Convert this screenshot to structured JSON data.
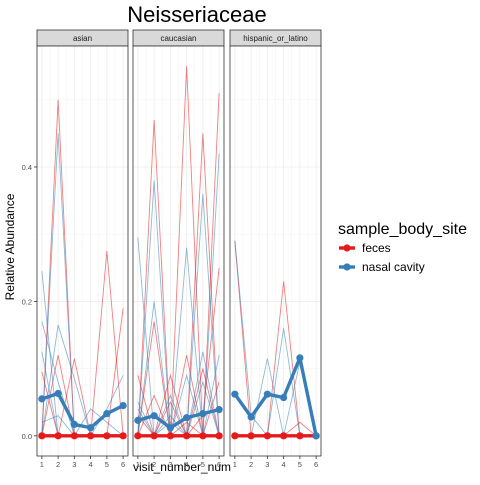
{
  "chart_data": {
    "type": "line",
    "title": "Neisseriaceae",
    "xlabel": "visit_number_num",
    "ylabel": "Relative Abundance",
    "facets": [
      "asian",
      "caucasian",
      "hispanic_or_latino"
    ],
    "x": [
      1,
      2,
      3,
      4,
      5,
      6
    ],
    "ylim": [
      -0.03,
      0.58
    ],
    "yticks": [
      0.0,
      0.2,
      0.4
    ],
    "ytick_labels": [
      "0.0",
      "0.2",
      "0.4"
    ],
    "grid": true,
    "legend": {
      "title": "sample_body_site",
      "position": "right",
      "entries": [
        {
          "label": "feces",
          "color": "#E41A1C"
        },
        {
          "label": "nasal cavity",
          "color": "#377EB8"
        }
      ]
    },
    "series": [
      {
        "name": "feces",
        "color": "#E41A1C",
        "panel": "asian",
        "x": [
          1,
          2,
          3,
          4,
          5,
          6
        ],
        "values": [
          0,
          0,
          0,
          0,
          0,
          0
        ]
      },
      {
        "name": "nasal cavity",
        "color": "#377EB8",
        "panel": "asian",
        "x": [
          1,
          2,
          3,
          4,
          5,
          6
        ],
        "values": [
          0.055,
          0.063,
          0.017,
          0.012,
          0.033,
          0.045
        ]
      },
      {
        "name": "feces",
        "color": "#E41A1C",
        "panel": "caucasian",
        "x": [
          1,
          2,
          3,
          4,
          5,
          6
        ],
        "values": [
          0,
          0,
          0,
          0,
          0,
          0
        ]
      },
      {
        "name": "nasal cavity",
        "color": "#377EB8",
        "panel": "caucasian",
        "x": [
          1,
          2,
          3,
          4,
          5,
          6
        ],
        "values": [
          0.023,
          0.03,
          0.012,
          0.027,
          0.033,
          0.039
        ]
      },
      {
        "name": "feces",
        "color": "#E41A1C",
        "panel": "hispanic_or_latino",
        "x": [
          1,
          2,
          3,
          4,
          5,
          6
        ],
        "values": [
          0,
          0,
          0,
          0,
          0,
          0
        ]
      },
      {
        "name": "nasal cavity",
        "color": "#377EB8",
        "panel": "hispanic_or_latino",
        "x": [
          1,
          2,
          3,
          4,
          5,
          6
        ],
        "values": [
          0.062,
          0.028,
          0.062,
          0.057,
          0.116,
          0.0
        ]
      }
    ],
    "individual_traces": [
      {
        "panel": "asian",
        "color": "#E41A1C",
        "values": [
          0.0,
          0.5,
          0.0,
          0.0,
          0.0,
          0.0
        ]
      },
      {
        "panel": "asian",
        "color": "#E41A1C",
        "values": [
          0.095,
          0.0,
          0.115,
          0.0,
          0.0,
          0.0
        ]
      },
      {
        "panel": "asian",
        "color": "#E41A1C",
        "values": [
          0.0,
          0.0,
          0.0,
          0.0,
          0.275,
          0.0
        ]
      },
      {
        "panel": "asian",
        "color": "#E41A1C",
        "values": [
          0.0,
          0.0,
          0.0,
          0.0,
          0.0,
          0.19
        ]
      },
      {
        "panel": "asian",
        "color": "#E41A1C",
        "values": [
          0.0,
          0.12,
          0.0,
          0.0,
          0.0,
          0.0
        ]
      },
      {
        "panel": "asian",
        "color": "#377EB8",
        "values": [
          0.245,
          0.0,
          0.0,
          0.0,
          0.0,
          0.0
        ]
      },
      {
        "panel": "asian",
        "color": "#377EB8",
        "values": [
          0.17,
          0.08,
          0.0,
          0.0,
          0.0,
          0.0
        ]
      },
      {
        "panel": "asian",
        "color": "#377EB8",
        "values": [
          0.125,
          0.0,
          0.0,
          0.0,
          0.0,
          0.0
        ]
      },
      {
        "panel": "asian",
        "color": "#377EB8",
        "values": [
          0.0,
          0.165,
          0.085,
          0.0,
          0.0,
          0.0
        ]
      },
      {
        "panel": "asian",
        "color": "#377EB8",
        "values": [
          0.0,
          0.45,
          0.0,
          0.0,
          0.0,
          0.0
        ]
      },
      {
        "panel": "asian",
        "color": "#377EB8",
        "values": [
          0.02,
          0.03,
          0.0,
          0.04,
          0.02,
          0.0
        ]
      },
      {
        "panel": "asian",
        "color": "#377EB8",
        "values": [
          0.0,
          0.0,
          0.0,
          0.0,
          0.04,
          0.09
        ]
      },
      {
        "panel": "caucasian",
        "color": "#E41A1C",
        "values": [
          0.0,
          0.47,
          0.0,
          0.0,
          0.0,
          0.0
        ]
      },
      {
        "panel": "caucasian",
        "color": "#E41A1C",
        "values": [
          0.0,
          0.0,
          0.0,
          0.55,
          0.0,
          0.0
        ]
      },
      {
        "panel": "caucasian",
        "color": "#E41A1C",
        "values": [
          0.0,
          0.0,
          0.0,
          0.0,
          0.45,
          0.0
        ]
      },
      {
        "panel": "caucasian",
        "color": "#E41A1C",
        "values": [
          0.0,
          0.0,
          0.0,
          0.0,
          0.0,
          0.51
        ]
      },
      {
        "panel": "caucasian",
        "color": "#E41A1C",
        "values": [
          0.0,
          0.17,
          0.0,
          0.0,
          0.0,
          0.0
        ]
      },
      {
        "panel": "caucasian",
        "color": "#E41A1C",
        "values": [
          0.03,
          0.0,
          0.09,
          0.0,
          0.0,
          0.0
        ]
      },
      {
        "panel": "caucasian",
        "color": "#E41A1C",
        "values": [
          0.0,
          0.0,
          0.0,
          0.12,
          0.0,
          0.0
        ]
      },
      {
        "panel": "caucasian",
        "color": "#E41A1C",
        "values": [
          0.0,
          0.0,
          0.0,
          0.0,
          0.03,
          0.25
        ]
      },
      {
        "panel": "caucasian",
        "color": "#E41A1C",
        "values": [
          0.0,
          0.0,
          0.05,
          0.0,
          0.0,
          0.0
        ]
      },
      {
        "panel": "caucasian",
        "color": "#E41A1C",
        "values": [
          0.09,
          0.0,
          0.0,
          0.02,
          0.0,
          0.0
        ]
      },
      {
        "panel": "caucasian",
        "color": "#E41A1C",
        "values": [
          0.0,
          0.0,
          0.0,
          0.0,
          0.0,
          0.08
        ]
      },
      {
        "panel": "caucasian",
        "color": "#E41A1C",
        "values": [
          0.0,
          0.06,
          0.0,
          0.0,
          0.1,
          0.0
        ]
      },
      {
        "panel": "caucasian",
        "color": "#377EB8",
        "values": [
          0.295,
          0.0,
          0.0,
          0.0,
          0.0,
          0.0
        ]
      },
      {
        "panel": "caucasian",
        "color": "#377EB8",
        "values": [
          0.0,
          0.38,
          0.0,
          0.0,
          0.0,
          0.0
        ]
      },
      {
        "panel": "caucasian",
        "color": "#377EB8",
        "values": [
          0.0,
          0.0,
          0.0,
          0.28,
          0.0,
          0.0
        ]
      },
      {
        "panel": "caucasian",
        "color": "#377EB8",
        "values": [
          0.0,
          0.0,
          0.0,
          0.0,
          0.36,
          0.0
        ]
      },
      {
        "panel": "caucasian",
        "color": "#377EB8",
        "values": [
          0.0,
          0.0,
          0.0,
          0.0,
          0.0,
          0.42
        ]
      },
      {
        "panel": "caucasian",
        "color": "#377EB8",
        "values": [
          0.0,
          0.2,
          0.0,
          0.0,
          0.0,
          0.0
        ]
      },
      {
        "panel": "caucasian",
        "color": "#377EB8",
        "values": [
          0.0,
          0.0,
          0.0,
          0.0,
          0.125,
          0.0
        ]
      },
      {
        "panel": "caucasian",
        "color": "#377EB8",
        "values": [
          0.05,
          0.0,
          0.06,
          0.0,
          0.0,
          0.0
        ]
      },
      {
        "panel": "caucasian",
        "color": "#377EB8",
        "values": [
          0.0,
          0.0,
          0.0,
          0.09,
          0.0,
          0.12
        ]
      },
      {
        "panel": "caucasian",
        "color": "#377EB8",
        "values": [
          0.0,
          0.0,
          0.03,
          0.0,
          0.0,
          0.0
        ]
      },
      {
        "panel": "caucasian",
        "color": "#377EB8",
        "values": [
          0.04,
          0.0,
          0.0,
          0.0,
          0.0,
          0.0
        ]
      },
      {
        "panel": "caucasian",
        "color": "#377EB8",
        "values": [
          0.0,
          0.0,
          0.02,
          0.0,
          0.08,
          0.0
        ]
      },
      {
        "panel": "hispanic_or_latino",
        "color": "#E41A1C",
        "values": [
          0.29,
          0.0,
          0.0,
          0.0,
          0.0,
          0.0
        ]
      },
      {
        "panel": "hispanic_or_latino",
        "color": "#E41A1C",
        "values": [
          0.0,
          0.0,
          0.0,
          0.23,
          0.0,
          0.0
        ]
      },
      {
        "panel": "hispanic_or_latino",
        "color": "#E41A1C",
        "values": [
          0.0,
          0.0,
          0.0,
          0.0,
          0.02,
          0.0
        ]
      },
      {
        "panel": "hispanic_or_latino",
        "color": "#377EB8",
        "values": [
          0.29,
          0.03,
          0.0,
          0.0,
          0.0,
          0.0
        ]
      },
      {
        "panel": "hispanic_or_latino",
        "color": "#377EB8",
        "values": [
          0.0,
          0.0,
          0.115,
          0.0,
          0.0,
          0.0
        ]
      },
      {
        "panel": "hispanic_or_latino",
        "color": "#377EB8",
        "values": [
          0.0,
          0.0,
          0.0,
          0.16,
          0.0,
          0.0
        ]
      },
      {
        "panel": "hispanic_or_latino",
        "color": "#377EB8",
        "values": [
          0.0,
          0.0,
          0.0,
          0.0,
          0.11,
          0.0
        ]
      }
    ]
  }
}
